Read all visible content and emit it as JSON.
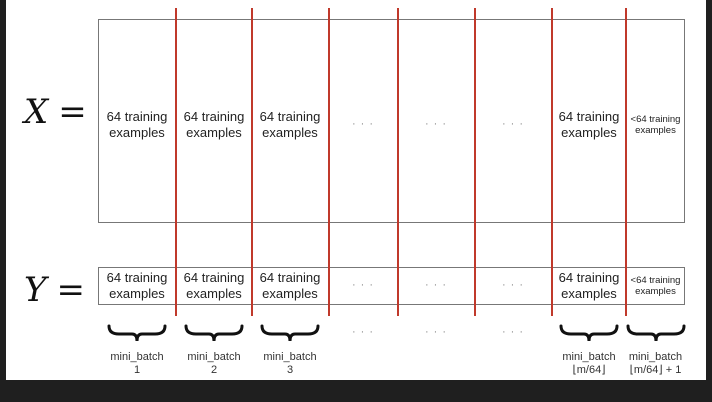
{
  "x_label": "X",
  "y_label": "Y",
  "equals": "=",
  "x_row": [
    "64 training examples",
    "64 training examples",
    "64 training examples",
    "…",
    "…",
    "…",
    "64 training examples",
    "<64 training examples"
  ],
  "y_row": [
    "64 training examples",
    "64 training examples",
    "64 training examples",
    "…",
    "…",
    "…",
    "64 training examples",
    "<64 training examples"
  ],
  "brace_row": [
    "brace",
    "brace",
    "brace",
    "…",
    "…",
    "…",
    "brace",
    "brace"
  ],
  "mini_batch": {
    "name": "mini_batch",
    "labels": [
      "1",
      "2",
      "3",
      "",
      "",
      "",
      "⌊m/64⌋",
      "⌊m/64⌋ + 1"
    ]
  },
  "colors": {
    "divider": "#c0392b",
    "box_border": "#777777",
    "background": "#ffffff",
    "outer": "#1f1f1f"
  }
}
